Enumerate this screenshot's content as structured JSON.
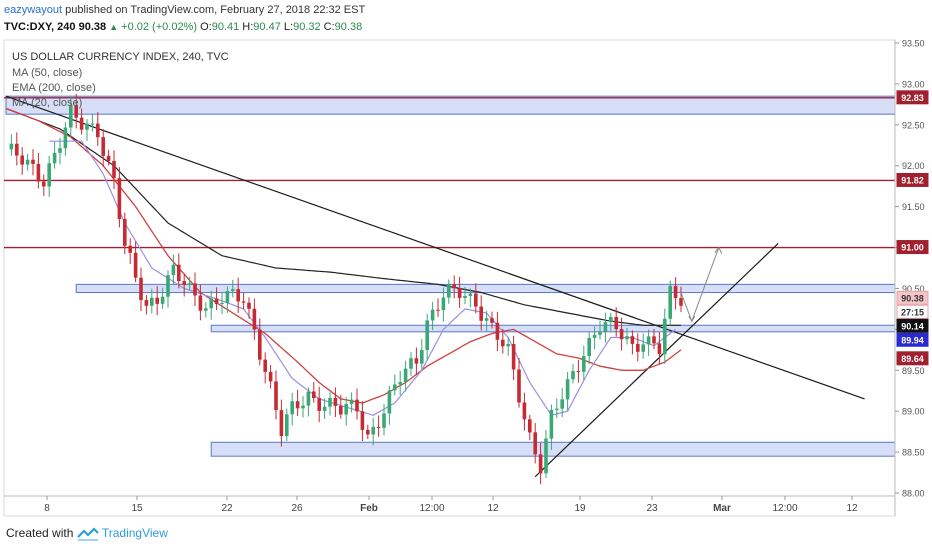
{
  "header": {
    "publisher": "eazywayout",
    "published_text": "published on TradingView.com, February 27, 2018 22:32 EST",
    "symbol": "TVC:DXY, 240",
    "last": "90.38",
    "change": "+0.02 (+0.02%)",
    "o_label": "O:",
    "o_value": "90.41",
    "h_label": "H:",
    "h_value": "90.47",
    "l_label": "L:",
    "l_value": "90.32",
    "c_label": "C:",
    "c_value": "90.38"
  },
  "footer": {
    "created_with": "Created with",
    "brand": "TradingView"
  },
  "colors": {
    "up": "#3aa776",
    "down": "#c62a33",
    "ma50": "#9b8fe0",
    "ema200": "#d04040",
    "ma20": "#222222",
    "zone_fill": "#c8d4f4",
    "zone_stroke": "#5a78c8",
    "res_line": "#a02030",
    "blue_badge": "#2a2ad0"
  },
  "chart_data": {
    "type": "candlestick",
    "title": "US DOLLAR CURRENCY INDEX, 240, TVC",
    "legend": [
      "MA (50, close)",
      "EMA (200, close)",
      "MA (20, close)"
    ],
    "ylim": [
      88.0,
      93.5
    ],
    "yticks": [
      {
        "value": 93.5,
        "label": "93.50"
      },
      {
        "value": 93.0,
        "label": "93.00"
      },
      {
        "value": 92.5,
        "label": "92.50"
      },
      {
        "value": 92.0,
        "label": "92.00"
      },
      {
        "value": 91.5,
        "label": "91.50"
      },
      {
        "value": 91.0,
        "label": "91.00"
      },
      {
        "value": 90.5,
        "label": "90.50"
      },
      {
        "value": 90.0,
        "label": "90.00"
      },
      {
        "value": 89.5,
        "label": "89.50"
      },
      {
        "value": 89.0,
        "label": "89.00"
      },
      {
        "value": 88.5,
        "label": "88.50"
      },
      {
        "value": 88.0,
        "label": "88.00"
      }
    ],
    "xticks": [
      "8",
      "15",
      "22",
      "26",
      "Feb",
      "12:00",
      "12",
      "19",
      "23",
      "Mar",
      "12:00",
      "12"
    ],
    "xtick_bold": [
      false,
      false,
      false,
      false,
      true,
      false,
      false,
      false,
      false,
      true,
      false,
      false
    ],
    "n_bars": 160,
    "price_anchors": [
      [
        0,
        92.2
      ],
      [
        4,
        92.0
      ],
      [
        7,
        91.85
      ],
      [
        10,
        92.3
      ],
      [
        12,
        92.6
      ],
      [
        14,
        92.5
      ],
      [
        17,
        92.45
      ],
      [
        20,
        91.8
      ],
      [
        22,
        91.0
      ],
      [
        24,
        90.6
      ],
      [
        26,
        90.3
      ],
      [
        28,
        90.4
      ],
      [
        31,
        90.7
      ],
      [
        34,
        90.45
      ],
      [
        37,
        90.3
      ],
      [
        40,
        90.4
      ],
      [
        44,
        90.35
      ],
      [
        46,
        90.0
      ],
      [
        49,
        89.3
      ],
      [
        51,
        88.75
      ],
      [
        53,
        89.0
      ],
      [
        56,
        89.2
      ],
      [
        59,
        89.1
      ],
      [
        62,
        89.0
      ],
      [
        65,
        89.05
      ],
      [
        67,
        88.7
      ],
      [
        70,
        89.0
      ],
      [
        73,
        89.4
      ],
      [
        76,
        89.65
      ],
      [
        78,
        90.1
      ],
      [
        81,
        90.4
      ],
      [
        84,
        90.45
      ],
      [
        87,
        90.35
      ],
      [
        90,
        90.0
      ],
      [
        93,
        89.7
      ],
      [
        95,
        89.2
      ],
      [
        97,
        88.7
      ],
      [
        99,
        88.35
      ],
      [
        101,
        88.9
      ],
      [
        104,
        89.3
      ],
      [
        107,
        89.75
      ],
      [
        110,
        90.05
      ],
      [
        113,
        90.0
      ],
      [
        116,
        89.8
      ],
      [
        118,
        89.9
      ],
      [
        121,
        89.75
      ],
      [
        123,
        90.4
      ],
      [
        125,
        90.38
      ]
    ],
    "ma50_anchors": [
      [
        8,
        92.3
      ],
      [
        14,
        92.3
      ],
      [
        18,
        91.9
      ],
      [
        22,
        91.3
      ],
      [
        27,
        90.75
      ],
      [
        33,
        90.5
      ],
      [
        40,
        90.35
      ],
      [
        44,
        90.25
      ],
      [
        48,
        89.9
      ],
      [
        53,
        89.4
      ],
      [
        58,
        89.15
      ],
      [
        63,
        89.05
      ],
      [
        68,
        88.95
      ],
      [
        72,
        89.1
      ],
      [
        77,
        89.5
      ],
      [
        81,
        90.0
      ],
      [
        85,
        90.25
      ],
      [
        89,
        90.2
      ],
      [
        93,
        89.9
      ],
      [
        97,
        89.35
      ],
      [
        101,
        88.95
      ],
      [
        104,
        89.0
      ],
      [
        108,
        89.5
      ],
      [
        112,
        89.9
      ],
      [
        116,
        89.9
      ],
      [
        120,
        89.8
      ],
      [
        124,
        90.0
      ]
    ],
    "ema200_anchors": [
      [
        0,
        92.7
      ],
      [
        6,
        92.55
      ],
      [
        12,
        92.35
      ],
      [
        18,
        92.0
      ],
      [
        24,
        91.5
      ],
      [
        30,
        90.9
      ],
      [
        36,
        90.45
      ],
      [
        42,
        90.2
      ],
      [
        48,
        89.95
      ],
      [
        54,
        89.6
      ],
      [
        58,
        89.35
      ],
      [
        62,
        89.15
      ],
      [
        66,
        89.1
      ],
      [
        70,
        89.2
      ],
      [
        74,
        89.35
      ],
      [
        78,
        89.55
      ],
      [
        82,
        89.7
      ],
      [
        86,
        89.85
      ],
      [
        90,
        89.95
      ],
      [
        94,
        90.0
      ],
      [
        98,
        89.85
      ],
      [
        102,
        89.7
      ],
      [
        106,
        89.65
      ],
      [
        110,
        89.55
      ],
      [
        114,
        89.5
      ],
      [
        118,
        89.5
      ],
      [
        122,
        89.6
      ],
      [
        125,
        89.75
      ]
    ],
    "ma20_anchors": [
      [
        0,
        92.7
      ],
      [
        10,
        92.45
      ],
      [
        20,
        92.0
      ],
      [
        30,
        91.3
      ],
      [
        40,
        90.9
      ],
      [
        50,
        90.75
      ],
      [
        60,
        90.7
      ],
      [
        70,
        90.62
      ],
      [
        80,
        90.55
      ],
      [
        88,
        90.45
      ],
      [
        96,
        90.3
      ],
      [
        104,
        90.2
      ],
      [
        112,
        90.1
      ],
      [
        118,
        90.05
      ],
      [
        125,
        90.05
      ]
    ],
    "horizontal_lines": [
      {
        "price": 92.83,
        "label": "92.83"
      },
      {
        "price": 91.82,
        "label": "91.82"
      },
      {
        "price": 91.0,
        "label": "91.00"
      }
    ],
    "zones": [
      {
        "top": 92.85,
        "bottom": 92.63,
        "from": 0
      },
      {
        "top": 90.55,
        "bottom": 90.45,
        "from": 13
      },
      {
        "top": 90.05,
        "bottom": 89.97,
        "from": 38
      },
      {
        "top": 88.62,
        "bottom": 88.45,
        "from": 38
      }
    ],
    "trendlines": [
      {
        "x1": 0,
        "y1": 92.85,
        "x2": 159,
        "y2": 89.15
      },
      {
        "x1": 98,
        "y1": 88.2,
        "x2": 143,
        "y2": 91.05
      }
    ],
    "projection": [
      [
        125,
        90.45
      ],
      [
        127,
        90.1
      ],
      [
        132,
        91.0
      ]
    ],
    "price_badges": [
      {
        "price": 92.83,
        "label": "92.83",
        "style": "red"
      },
      {
        "price": 91.82,
        "label": "91.82",
        "style": "red"
      },
      {
        "price": 91.0,
        "label": "91.00",
        "style": "red"
      },
      {
        "price": 90.38,
        "label": "90.38",
        "style": "pink"
      },
      {
        "price": 90.245,
        "label": "27:15",
        "style": "pink-outline"
      },
      {
        "price": 90.14,
        "label": "90.14",
        "style": "black"
      },
      {
        "price": 89.94,
        "label": "89.94",
        "style": "blue"
      },
      {
        "price": 89.64,
        "label": "89.64",
        "style": "red"
      }
    ]
  }
}
